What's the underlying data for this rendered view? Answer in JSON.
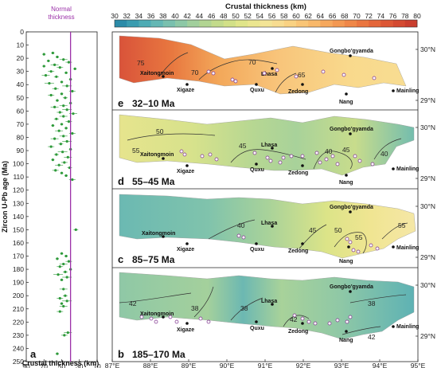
{
  "chart_data": [
    {
      "type": "scatter",
      "panel_letter": "a",
      "xlabel": "Crustal thickness (km)",
      "ylabel": "Zircon U-Pb age (Ma)",
      "xlim": [
        90,
        10
      ],
      "ylim": [
        250,
        0
      ],
      "xticks": [
        90,
        70,
        50,
        30,
        10
      ],
      "yticks": [
        0,
        10,
        20,
        30,
        40,
        50,
        60,
        70,
        80,
        90,
        100,
        110,
        120,
        130,
        140,
        150,
        160,
        170,
        180,
        190,
        200,
        210,
        220,
        230,
        240,
        250
      ],
      "reference_line": {
        "label_line1": "Normal",
        "label_line2": "thickness",
        "x": 40,
        "color": "#9b30a8"
      },
      "point_color": "#2e9a3a",
      "points": [
        [
          60,
          16
        ],
        [
          70,
          17
        ],
        [
          55,
          19
        ],
        [
          48,
          21
        ],
        [
          65,
          22
        ],
        [
          42,
          23
        ],
        [
          58,
          25
        ],
        [
          70,
          26
        ],
        [
          52,
          27
        ],
        [
          35,
          28
        ],
        [
          62,
          30
        ],
        [
          45,
          31
        ],
        [
          68,
          33
        ],
        [
          56,
          34
        ],
        [
          40,
          36
        ],
        [
          50,
          38
        ],
        [
          64,
          39
        ],
        [
          44,
          41
        ],
        [
          57,
          43
        ],
        [
          38,
          45
        ],
        [
          50,
          47
        ],
        [
          62,
          48
        ],
        [
          46,
          50
        ],
        [
          55,
          52
        ],
        [
          40,
          54
        ],
        [
          48,
          56
        ],
        [
          58,
          57
        ],
        [
          44,
          59
        ],
        [
          52,
          61
        ],
        [
          37,
          62
        ],
        [
          48,
          64
        ],
        [
          56,
          66
        ],
        [
          42,
          68
        ],
        [
          50,
          70
        ],
        [
          60,
          71
        ],
        [
          45,
          73
        ],
        [
          53,
          75
        ],
        [
          38,
          77
        ],
        [
          48,
          79
        ],
        [
          58,
          81
        ],
        [
          44,
          83
        ],
        [
          51,
          85
        ],
        [
          62,
          87
        ],
        [
          40,
          89
        ],
        [
          49,
          91
        ],
        [
          56,
          93
        ],
        [
          43,
          95
        ],
        [
          60,
          97
        ],
        [
          47,
          99
        ],
        [
          53,
          101
        ],
        [
          41,
          103
        ],
        [
          57,
          105
        ],
        [
          50,
          107
        ],
        [
          45,
          109
        ],
        [
          38,
          112
        ],
        [
          34,
          150
        ],
        [
          50,
          168
        ],
        [
          45,
          170
        ],
        [
          55,
          172
        ],
        [
          42,
          174
        ],
        [
          48,
          176
        ],
        [
          52,
          178
        ],
        [
          40,
          180
        ],
        [
          46,
          182
        ],
        [
          54,
          184
        ],
        [
          44,
          186
        ],
        [
          50,
          188
        ],
        [
          48,
          195
        ],
        [
          46,
          200
        ],
        [
          52,
          202
        ],
        [
          44,
          204
        ],
        [
          50,
          206
        ],
        [
          48,
          208
        ],
        [
          52,
          212
        ],
        [
          43,
          228
        ],
        [
          47,
          230
        ],
        [
          55,
          244
        ]
      ]
    },
    {
      "type": "heatmap",
      "title": "Crustal thickness (km)",
      "colorbar": {
        "ticks": [
          30,
          32,
          34,
          36,
          38,
          40,
          42,
          44,
          46,
          48,
          50,
          52,
          54,
          56,
          58,
          60,
          62,
          64,
          66,
          68,
          70,
          72,
          74,
          76,
          78,
          80
        ],
        "colors": [
          "#2b8ba8",
          "#3a9cb0",
          "#4eabb4",
          "#64b7b4",
          "#7ac0ae",
          "#8dc8a6",
          "#a1cf9c",
          "#b2d592",
          "#c3db8b",
          "#d2e087",
          "#e0e589",
          "#ebe68f",
          "#f3e496",
          "#f7dc90",
          "#f9d283",
          "#f9c576",
          "#f8b86a",
          "#f6a85d",
          "#f39852",
          "#ef8748",
          "#ea7640",
          "#e4663a",
          "#dd5735",
          "#d44a31",
          "#ca3e2e"
        ]
      },
      "xaxis_labels": [
        "87°E",
        "88°E",
        "89°E",
        "90°E",
        "91°E",
        "92°E",
        "93°E",
        "94°E",
        "95°E"
      ],
      "yaxis_labels": [
        "30°N",
        "29°N"
      ],
      "panels": [
        {
          "letter": "e",
          "age": "32–10 Ma",
          "cities": [
            "Xaitongmoin",
            "Xigaze",
            "Quxu",
            "Lhasa",
            "Zedong",
            "Nang",
            "Mainling",
            "Gongbo'gyamda"
          ],
          "contours": [
            "75",
            "70",
            "70",
            "65"
          ]
        },
        {
          "letter": "d",
          "age": "55–45 Ma",
          "cities": [
            "Xaitongmoin",
            "Xigaze",
            "Quxu",
            "Lhasa",
            "Zedong",
            "Nang",
            "Mainling",
            "Gongbo'gyamda"
          ],
          "contours": [
            "50",
            "55",
            "45",
            "40",
            "45",
            "40"
          ]
        },
        {
          "letter": "c",
          "age": "85–75 Ma",
          "cities": [
            "Xaitongmoin",
            "Xigaze",
            "Quxu",
            "Lhasa",
            "Zedong",
            "Nang",
            "Mainling",
            "Gongbo'gyamda"
          ],
          "contours": [
            "40",
            "45",
            "50",
            "55",
            "55"
          ]
        },
        {
          "letter": "b",
          "age": "185–170 Ma",
          "cities": [
            "Xaitongmoin",
            "Xigaze",
            "Quxu",
            "Lhasa",
            "Zedong",
            "Nang",
            "Mainling",
            "Gongbo'gyamda"
          ],
          "contours": [
            "42",
            "38",
            "38",
            "42",
            "38",
            "42"
          ]
        }
      ]
    }
  ]
}
